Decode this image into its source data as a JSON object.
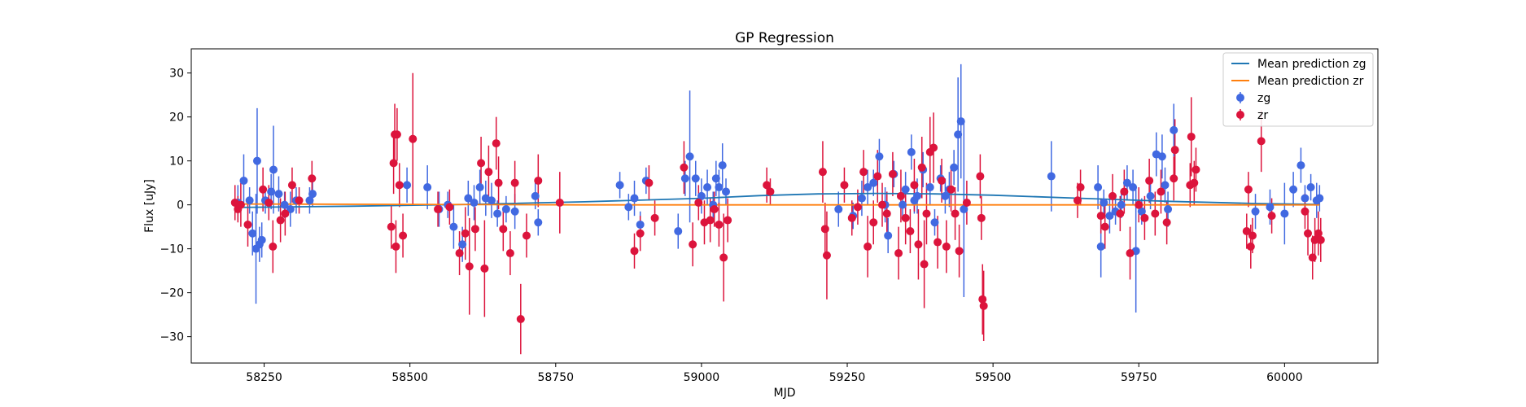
{
  "chart_data": {
    "type": "scatter",
    "title": "GP Regression",
    "xlabel": "MJD",
    "ylabel": "Flux [uJy]",
    "xlim": [
      58125,
      60160
    ],
    "ylim": [
      -36,
      35.5
    ],
    "xticks": [
      58250,
      58500,
      58750,
      59000,
      59250,
      59500,
      59750,
      60000
    ],
    "yticks": [
      -30,
      -20,
      -10,
      0,
      10,
      20,
      30
    ],
    "legend": "top-right",
    "grid": false,
    "colors": {
      "zg_line": "#1f77b4",
      "zr_line": "#ff7f0e",
      "zg_points": "#4169e1",
      "zr_points": "#dc143c"
    },
    "lines": [
      {
        "name": "Mean prediction zg",
        "x": [
          58200,
          58400,
          58600,
          58800,
          59000,
          59100,
          59200,
          59300,
          59400,
          59500,
          59650,
          59800,
          59950,
          60060
        ],
        "y": [
          -0.6,
          -0.3,
          0.1,
          0.7,
          1.5,
          2.1,
          2.5,
          2.6,
          2.5,
          2.2,
          1.5,
          0.8,
          0.3,
          0.1
        ]
      },
      {
        "name": "Mean prediction zr",
        "x": [
          58200,
          58500,
          58800,
          59100,
          59400,
          59700,
          60000,
          60060
        ],
        "y": [
          0.2,
          0.1,
          0.0,
          0.0,
          0.0,
          0.0,
          0.0,
          0.0
        ]
      }
    ],
    "series": [
      {
        "name": "zg",
        "points": [
          [
            58205,
            0.5,
            4
          ],
          [
            58215,
            5.5,
            6
          ],
          [
            58225,
            1.0,
            3
          ],
          [
            58230,
            -6.5,
            5
          ],
          [
            58236,
            -10.0,
            12.5
          ],
          [
            58238,
            10.0,
            12
          ],
          [
            58242,
            -9.0,
            4
          ],
          [
            58246,
            -8.0,
            4
          ],
          [
            58252,
            1.0,
            3
          ],
          [
            58262,
            3.0,
            4
          ],
          [
            58266,
            8.0,
            10
          ],
          [
            58275,
            2.5,
            4
          ],
          [
            58285,
            0.0,
            3
          ],
          [
            58295,
            -1.0,
            4
          ],
          [
            58305,
            1.0,
            3
          ],
          [
            58328,
            1.0,
            3
          ],
          [
            58333,
            2.5,
            3
          ],
          [
            58495,
            4.5,
            4
          ],
          [
            58530,
            4.0,
            5
          ],
          [
            58550,
            -1.0,
            4
          ],
          [
            58565,
            0.0,
            3
          ],
          [
            58575,
            -5.0,
            5
          ],
          [
            58590,
            -9.0,
            4
          ],
          [
            58600,
            1.5,
            4
          ],
          [
            58610,
            0.5,
            4
          ],
          [
            58620,
            4.0,
            4
          ],
          [
            58630,
            1.5,
            4
          ],
          [
            58640,
            1.0,
            4
          ],
          [
            58650,
            -2.0,
            3
          ],
          [
            58665,
            -1.0,
            3
          ],
          [
            58680,
            -1.5,
            4
          ],
          [
            58715,
            2.0,
            3
          ],
          [
            58720,
            -4.0,
            3
          ],
          [
            58860,
            4.5,
            3
          ],
          [
            58875,
            -0.5,
            3
          ],
          [
            58885,
            1.5,
            4
          ],
          [
            58895,
            -4.5,
            3
          ],
          [
            58905,
            5.5,
            3
          ],
          [
            58960,
            -6.0,
            4
          ],
          [
            58972,
            6.0,
            4
          ],
          [
            58980,
            11.0,
            15
          ],
          [
            58990,
            6.0,
            4
          ],
          [
            59000,
            2.0,
            4
          ],
          [
            59010,
            4.0,
            4
          ],
          [
            59020,
            0.0,
            3
          ],
          [
            59025,
            6.0,
            4
          ],
          [
            59030,
            4.0,
            4
          ],
          [
            59036,
            9.0,
            5
          ],
          [
            59042,
            3.0,
            3
          ],
          [
            59235,
            -1.0,
            4
          ],
          [
            59260,
            -2.5,
            3
          ],
          [
            59275,
            1.5,
            4
          ],
          [
            59285,
            4.0,
            4
          ],
          [
            59295,
            5.0,
            3
          ],
          [
            59305,
            11.0,
            4
          ],
          [
            59315,
            0.0,
            4
          ],
          [
            59320,
            -7.0,
            4
          ],
          [
            59330,
            7.0,
            3
          ],
          [
            59345,
            0.0,
            3
          ],
          [
            59350,
            3.5,
            4
          ],
          [
            59360,
            12.0,
            4
          ],
          [
            59365,
            1.0,
            3
          ],
          [
            59370,
            2.0,
            4
          ],
          [
            59380,
            8.0,
            4
          ],
          [
            59392,
            4.0,
            4
          ],
          [
            59400,
            -4.0,
            3
          ],
          [
            59410,
            6.0,
            3
          ],
          [
            59418,
            2.0,
            4
          ],
          [
            59425,
            3.5,
            4
          ],
          [
            59433,
            8.5,
            4
          ],
          [
            59440,
            16.0,
            13
          ],
          [
            59445,
            19.0,
            13
          ],
          [
            59450,
            -1.0,
            20
          ],
          [
            59600,
            6.5,
            8
          ],
          [
            59680,
            4.0,
            5
          ],
          [
            59685,
            -9.5,
            7
          ],
          [
            59690,
            0.5,
            3
          ],
          [
            59700,
            -2.5,
            4
          ],
          [
            59710,
            -1.5,
            3
          ],
          [
            59720,
            0.0,
            3
          ],
          [
            59730,
            5.0,
            4
          ],
          [
            59740,
            4.0,
            4
          ],
          [
            59745,
            -10.5,
            14
          ],
          [
            59755,
            -1.5,
            3
          ],
          [
            59770,
            2.0,
            3
          ],
          [
            59780,
            11.5,
            5
          ],
          [
            59790,
            11.0,
            5
          ],
          [
            59795,
            4.5,
            4
          ],
          [
            59800,
            -1.0,
            4
          ],
          [
            59810,
            17.0,
            6
          ],
          [
            59950,
            -1.5,
            4
          ],
          [
            59975,
            -0.5,
            4
          ],
          [
            60000,
            -2.0,
            7
          ],
          [
            60015,
            3.5,
            4
          ],
          [
            60028,
            9.0,
            4
          ],
          [
            60035,
            1.5,
            3
          ],
          [
            60045,
            4.0,
            3
          ],
          [
            60055,
            1.0,
            4
          ],
          [
            60060,
            1.5,
            3
          ]
        ]
      },
      {
        "name": "zr",
        "points": [
          [
            58200,
            0.5,
            4
          ],
          [
            58205,
            -1.0,
            3
          ],
          [
            58210,
            0.0,
            5
          ],
          [
            58222,
            -4.5,
            5
          ],
          [
            58248,
            3.5,
            5
          ],
          [
            58258,
            0.5,
            4
          ],
          [
            58265,
            -9.5,
            6
          ],
          [
            58278,
            -3.5,
            5
          ],
          [
            58286,
            -2.0,
            5
          ],
          [
            58298,
            4.5,
            4
          ],
          [
            58310,
            1.0,
            3
          ],
          [
            58332,
            6.0,
            4
          ],
          [
            58468,
            -5.0,
            5
          ],
          [
            58472,
            9.5,
            7
          ],
          [
            58474,
            16.0,
            7
          ],
          [
            58476,
            -9.5,
            6
          ],
          [
            58478,
            16.0,
            6
          ],
          [
            58482,
            4.5,
            5
          ],
          [
            58488,
            -7.0,
            5
          ],
          [
            58505,
            15.0,
            15
          ],
          [
            58548,
            -1.0,
            4
          ],
          [
            58568,
            -0.5,
            4
          ],
          [
            58585,
            -11.0,
            5
          ],
          [
            58595,
            -6.5,
            6
          ],
          [
            58602,
            -14.0,
            11
          ],
          [
            58612,
            -5.5,
            5
          ],
          [
            58622,
            9.5,
            6
          ],
          [
            58628,
            -14.5,
            11
          ],
          [
            58635,
            7.5,
            6
          ],
          [
            58648,
            14.0,
            6
          ],
          [
            58652,
            5.0,
            6
          ],
          [
            58660,
            -5.5,
            5
          ],
          [
            58672,
            -11.0,
            5
          ],
          [
            58680,
            5.0,
            5
          ],
          [
            58690,
            -26.0,
            8
          ],
          [
            58700,
            -7.0,
            5
          ],
          [
            58720,
            5.5,
            6
          ],
          [
            58757,
            0.5,
            7
          ],
          [
            58885,
            -10.5,
            4
          ],
          [
            58895,
            -6.5,
            4
          ],
          [
            58910,
            5.0,
            4
          ],
          [
            58920,
            -3.0,
            4
          ],
          [
            58970,
            8.5,
            6
          ],
          [
            58985,
            -9.0,
            5
          ],
          [
            58995,
            0.5,
            4
          ],
          [
            59005,
            -4.0,
            5
          ],
          [
            59015,
            -3.5,
            5
          ],
          [
            59022,
            -1.0,
            4
          ],
          [
            59030,
            -4.5,
            5
          ],
          [
            59038,
            -12.0,
            10
          ],
          [
            59045,
            -3.5,
            5
          ],
          [
            59112,
            4.5,
            4
          ],
          [
            59118,
            3.0,
            3
          ],
          [
            59208,
            7.5,
            7
          ],
          [
            59212,
            -5.5,
            6
          ],
          [
            59215,
            -11.5,
            10
          ],
          [
            59245,
            4.5,
            4
          ],
          [
            59258,
            -3.0,
            4
          ],
          [
            59268,
            -0.5,
            4
          ],
          [
            59278,
            7.5,
            5
          ],
          [
            59285,
            -9.5,
            7
          ],
          [
            59295,
            -4.0,
            5
          ],
          [
            59302,
            6.5,
            6
          ],
          [
            59310,
            0.0,
            5
          ],
          [
            59318,
            -2.0,
            5
          ],
          [
            59328,
            7.0,
            5
          ],
          [
            59338,
            -11.0,
            6
          ],
          [
            59342,
            2.0,
            6
          ],
          [
            59350,
            -3.0,
            6
          ],
          [
            59358,
            -6.0,
            5
          ],
          [
            59365,
            4.5,
            6
          ],
          [
            59372,
            -9.0,
            8
          ],
          [
            59378,
            8.5,
            7
          ],
          [
            59382,
            -13.5,
            10
          ],
          [
            59386,
            -2.0,
            7
          ],
          [
            59392,
            12.0,
            8
          ],
          [
            59398,
            13.0,
            8
          ],
          [
            59405,
            -8.5,
            6
          ],
          [
            59412,
            5.5,
            5
          ],
          [
            59420,
            -9.5,
            6
          ],
          [
            59428,
            3.5,
            5
          ],
          [
            59435,
            -2.0,
            6
          ],
          [
            59442,
            -10.5,
            6
          ],
          [
            59455,
            0.5,
            5
          ],
          [
            59478,
            6.5,
            5
          ],
          [
            59480,
            -3.0,
            5
          ],
          [
            59482,
            -21.5,
            8
          ],
          [
            59484,
            -23.0,
            8
          ],
          [
            59645,
            1.0,
            4
          ],
          [
            59650,
            4.0,
            4
          ],
          [
            59685,
            -2.5,
            4
          ],
          [
            59692,
            -5.0,
            5
          ],
          [
            59705,
            2.0,
            5
          ],
          [
            59718,
            -2.0,
            4
          ],
          [
            59725,
            3.0,
            5
          ],
          [
            59735,
            -11.0,
            6
          ],
          [
            59750,
            0.0,
            4
          ],
          [
            59760,
            -3.0,
            5
          ],
          [
            59768,
            5.5,
            5
          ],
          [
            59778,
            -2.0,
            5
          ],
          [
            59788,
            3.0,
            5
          ],
          [
            59798,
            -4.0,
            5
          ],
          [
            59810,
            6.0,
            5
          ],
          [
            59812,
            12.5,
            7
          ],
          [
            59838,
            4.5,
            5
          ],
          [
            59840,
            15.5,
            9
          ],
          [
            59845,
            5.0,
            5
          ],
          [
            59848,
            8.0,
            5
          ],
          [
            59935,
            -6.0,
            4
          ],
          [
            59938,
            3.5,
            4
          ],
          [
            59942,
            -9.5,
            5
          ],
          [
            59945,
            -7.0,
            4
          ],
          [
            59960,
            14.5,
            7
          ],
          [
            59978,
            -2.5,
            4
          ],
          [
            60035,
            -1.5,
            4
          ],
          [
            60040,
            -6.5,
            5
          ],
          [
            60048,
            -12.0,
            5
          ],
          [
            60052,
            -8.0,
            5
          ],
          [
            60058,
            -6.5,
            5
          ],
          [
            60062,
            -8.0,
            5
          ]
        ]
      }
    ]
  }
}
